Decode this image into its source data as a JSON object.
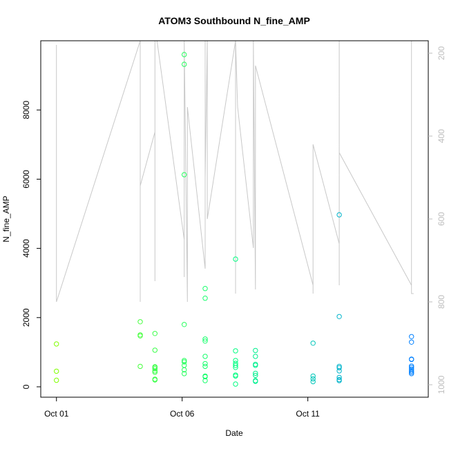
{
  "chart_data": {
    "type": "scatter",
    "title": "ATOM3 Southbound N_fine_AMP",
    "xlabel": "Date",
    "ylabel": "N_fine_AMP",
    "xlim": [
      "2016-09-30T09:00",
      "2016-10-15T19:00"
    ],
    "ylim": [
      -300,
      10000
    ],
    "x_ticks": [
      {
        "date": "2016-10-01",
        "label": "Oct 01"
      },
      {
        "date": "2016-10-06",
        "label": "Oct 06"
      },
      {
        "date": "2016-10-11",
        "label": "Oct 11"
      }
    ],
    "y_ticks": [
      0,
      2000,
      4000,
      6000,
      8000
    ],
    "right_axis": {
      "description": "secondary axis (reversed), grey line trace",
      "ylim": [
        1030,
        170
      ],
      "ticks": [
        200,
        400,
        600,
        800,
        1000
      ],
      "color": "#bdbdbd"
    },
    "colors": {
      "point_ramp_start": "#80ff00",
      "point_ramp_mid": "#00ff80",
      "point_ramp_end": "#0080ff",
      "line": "#c8c8c8"
    },
    "series": [
      {
        "kind": "points",
        "values": [
          {
            "x": "2016-10-01T00:00",
            "y": 1240
          },
          {
            "x": "2016-10-01T00:00",
            "y": 450
          },
          {
            "x": "2016-10-01T00:00",
            "y": 190
          },
          {
            "x": "2016-10-04T08:00",
            "y": 1880
          },
          {
            "x": "2016-10-04T08:00",
            "y": 1500
          },
          {
            "x": "2016-10-04T08:00",
            "y": 1470
          },
          {
            "x": "2016-10-04T08:00",
            "y": 590
          },
          {
            "x": "2016-10-04T22:00",
            "y": 1540
          },
          {
            "x": "2016-10-04T22:00",
            "y": 1060
          },
          {
            "x": "2016-10-04T22:00",
            "y": 580
          },
          {
            "x": "2016-10-04T22:00",
            "y": 560
          },
          {
            "x": "2016-10-04T22:00",
            "y": 520
          },
          {
            "x": "2016-10-04T22:00",
            "y": 460
          },
          {
            "x": "2016-10-04T22:00",
            "y": 420
          },
          {
            "x": "2016-10-04T22:00",
            "y": 220
          },
          {
            "x": "2016-10-04T22:00",
            "y": 200
          },
          {
            "x": "2016-10-06T02:00",
            "y": 9600
          },
          {
            "x": "2016-10-06T02:00",
            "y": 9320
          },
          {
            "x": "2016-10-06T02:00",
            "y": 6130
          },
          {
            "x": "2016-10-06T02:00",
            "y": 1800
          },
          {
            "x": "2016-10-06T02:00",
            "y": 760
          },
          {
            "x": "2016-10-06T02:00",
            "y": 720
          },
          {
            "x": "2016-10-06T02:00",
            "y": 620
          },
          {
            "x": "2016-10-06T02:00",
            "y": 490
          },
          {
            "x": "2016-10-06T02:00",
            "y": 380
          },
          {
            "x": "2016-10-06T22:00",
            "y": 2840
          },
          {
            "x": "2016-10-06T22:00",
            "y": 2560
          },
          {
            "x": "2016-10-06T22:00",
            "y": 1380
          },
          {
            "x": "2016-10-06T22:00",
            "y": 1320
          },
          {
            "x": "2016-10-06T22:00",
            "y": 880
          },
          {
            "x": "2016-10-06T22:00",
            "y": 670
          },
          {
            "x": "2016-10-06T22:00",
            "y": 590
          },
          {
            "x": "2016-10-06T22:00",
            "y": 310
          },
          {
            "x": "2016-10-06T22:00",
            "y": 290
          },
          {
            "x": "2016-10-06T22:00",
            "y": 180
          },
          {
            "x": "2016-10-08T03:00",
            "y": 3690
          },
          {
            "x": "2016-10-08T03:00",
            "y": 1040
          },
          {
            "x": "2016-10-08T03:00",
            "y": 760
          },
          {
            "x": "2016-10-08T03:00",
            "y": 680
          },
          {
            "x": "2016-10-08T03:00",
            "y": 620
          },
          {
            "x": "2016-10-08T03:00",
            "y": 560
          },
          {
            "x": "2016-10-08T03:00",
            "y": 340
          },
          {
            "x": "2016-10-08T03:00",
            "y": 310
          },
          {
            "x": "2016-10-08T03:00",
            "y": 80
          },
          {
            "x": "2016-10-08T22:00",
            "y": 1050
          },
          {
            "x": "2016-10-08T22:00",
            "y": 880
          },
          {
            "x": "2016-10-08T22:00",
            "y": 650
          },
          {
            "x": "2016-10-08T22:00",
            "y": 620
          },
          {
            "x": "2016-10-08T22:00",
            "y": 390
          },
          {
            "x": "2016-10-08T22:00",
            "y": 330
          },
          {
            "x": "2016-10-08T22:00",
            "y": 180
          },
          {
            "x": "2016-10-08T22:00",
            "y": 160
          },
          {
            "x": "2016-10-11T05:00",
            "y": 1260
          },
          {
            "x": "2016-10-11T05:00",
            "y": 310
          },
          {
            "x": "2016-10-11T05:00",
            "y": 230
          },
          {
            "x": "2016-10-11T05:00",
            "y": 150
          },
          {
            "x": "2016-10-12T06:00",
            "y": 4970
          },
          {
            "x": "2016-10-12T06:00",
            "y": 2030
          },
          {
            "x": "2016-10-12T06:00",
            "y": 590
          },
          {
            "x": "2016-10-12T06:00",
            "y": 550
          },
          {
            "x": "2016-10-12T06:00",
            "y": 460
          },
          {
            "x": "2016-10-12T06:00",
            "y": 270
          },
          {
            "x": "2016-10-12T06:00",
            "y": 210
          },
          {
            "x": "2016-10-12T06:00",
            "y": 180
          },
          {
            "x": "2016-10-15T03:00",
            "y": 1450
          },
          {
            "x": "2016-10-15T03:00",
            "y": 1290
          },
          {
            "x": "2016-10-15T03:00",
            "y": 800
          },
          {
            "x": "2016-10-15T03:00",
            "y": 790
          },
          {
            "x": "2016-10-15T03:00",
            "y": 600
          },
          {
            "x": "2016-10-15T03:00",
            "y": 560
          },
          {
            "x": "2016-10-15T03:00",
            "y": 510
          },
          {
            "x": "2016-10-15T03:00",
            "y": 460
          },
          {
            "x": "2016-10-15T03:00",
            "y": 420
          },
          {
            "x": "2016-10-15T03:00",
            "y": 380
          }
        ]
      },
      {
        "kind": "line",
        "axis": "right",
        "values": [
          {
            "x": "2016-10-01T00:00",
            "y": 180
          },
          {
            "x": "2016-10-01T00:00",
            "y": 800
          },
          {
            "x": "2016-10-04T08:00",
            "y": 170
          },
          {
            "x": "2016-10-04T08:00",
            "y": 800
          },
          {
            "x": "2016-10-04T08:00",
            "y": 520
          },
          {
            "x": "2016-10-04T22:00",
            "y": 390
          },
          {
            "x": "2016-10-04T22:00",
            "y": 180
          },
          {
            "x": "2016-10-04T22:00",
            "y": 750
          },
          {
            "x": "2016-10-04T22:00",
            "y": 200
          },
          {
            "x": "2016-10-04T22:00",
            "y": 750
          },
          {
            "x": "2016-10-04T22:00",
            "y": 170
          },
          {
            "x": "2016-10-05T00:00",
            "y": 170
          },
          {
            "x": "2016-10-06T02:00",
            "y": 650
          },
          {
            "x": "2016-10-06T02:00",
            "y": 170
          },
          {
            "x": "2016-10-06T02:00",
            "y": 740
          },
          {
            "x": "2016-10-06T02:00",
            "y": 170
          },
          {
            "x": "2016-10-06T05:00",
            "y": 800
          },
          {
            "x": "2016-10-06T05:00",
            "y": 330
          },
          {
            "x": "2016-10-06T22:00",
            "y": 720
          },
          {
            "x": "2016-10-06T22:00",
            "y": 170
          },
          {
            "x": "2016-10-06T22:00",
            "y": 500
          },
          {
            "x": "2016-10-07T00:00",
            "y": 170
          },
          {
            "x": "2016-10-07T00:00",
            "y": 360
          },
          {
            "x": "2016-10-07T00:00",
            "y": 600
          },
          {
            "x": "2016-10-08T03:00",
            "y": 170
          },
          {
            "x": "2016-10-08T03:00",
            "y": 780
          },
          {
            "x": "2016-10-08T03:00",
            "y": 170
          },
          {
            "x": "2016-10-08T05:00",
            "y": 330
          },
          {
            "x": "2016-10-08T20:00",
            "y": 670
          },
          {
            "x": "2016-10-08T20:00",
            "y": 170
          },
          {
            "x": "2016-10-08T22:00",
            "y": 770
          },
          {
            "x": "2016-10-08T22:00",
            "y": 230
          },
          {
            "x": "2016-10-11T05:00",
            "y": 760
          },
          {
            "x": "2016-10-11T05:00",
            "y": 780
          },
          {
            "x": "2016-10-11T05:00",
            "y": 780
          },
          {
            "x": "2016-10-11T05:00",
            "y": 760
          },
          {
            "x": "2016-10-11T05:00",
            "y": 420
          },
          {
            "x": "2016-10-12T06:00",
            "y": 660
          },
          {
            "x": "2016-10-12T06:00",
            "y": 490
          },
          {
            "x": "2016-10-12T06:00",
            "y": 760
          },
          {
            "x": "2016-10-12T06:00",
            "y": 170
          },
          {
            "x": "2016-10-12T06:00",
            "y": 760
          },
          {
            "x": "2016-10-12T06:00",
            "y": 170
          },
          {
            "x": "2016-10-12T06:00",
            "y": 440
          },
          {
            "x": "2016-10-15T03:00",
            "y": 760
          },
          {
            "x": "2016-10-15T03:00",
            "y": 170
          },
          {
            "x": "2016-10-15T03:00",
            "y": 780
          },
          {
            "x": "2016-10-15T05:00",
            "y": 780
          }
        ]
      }
    ]
  }
}
